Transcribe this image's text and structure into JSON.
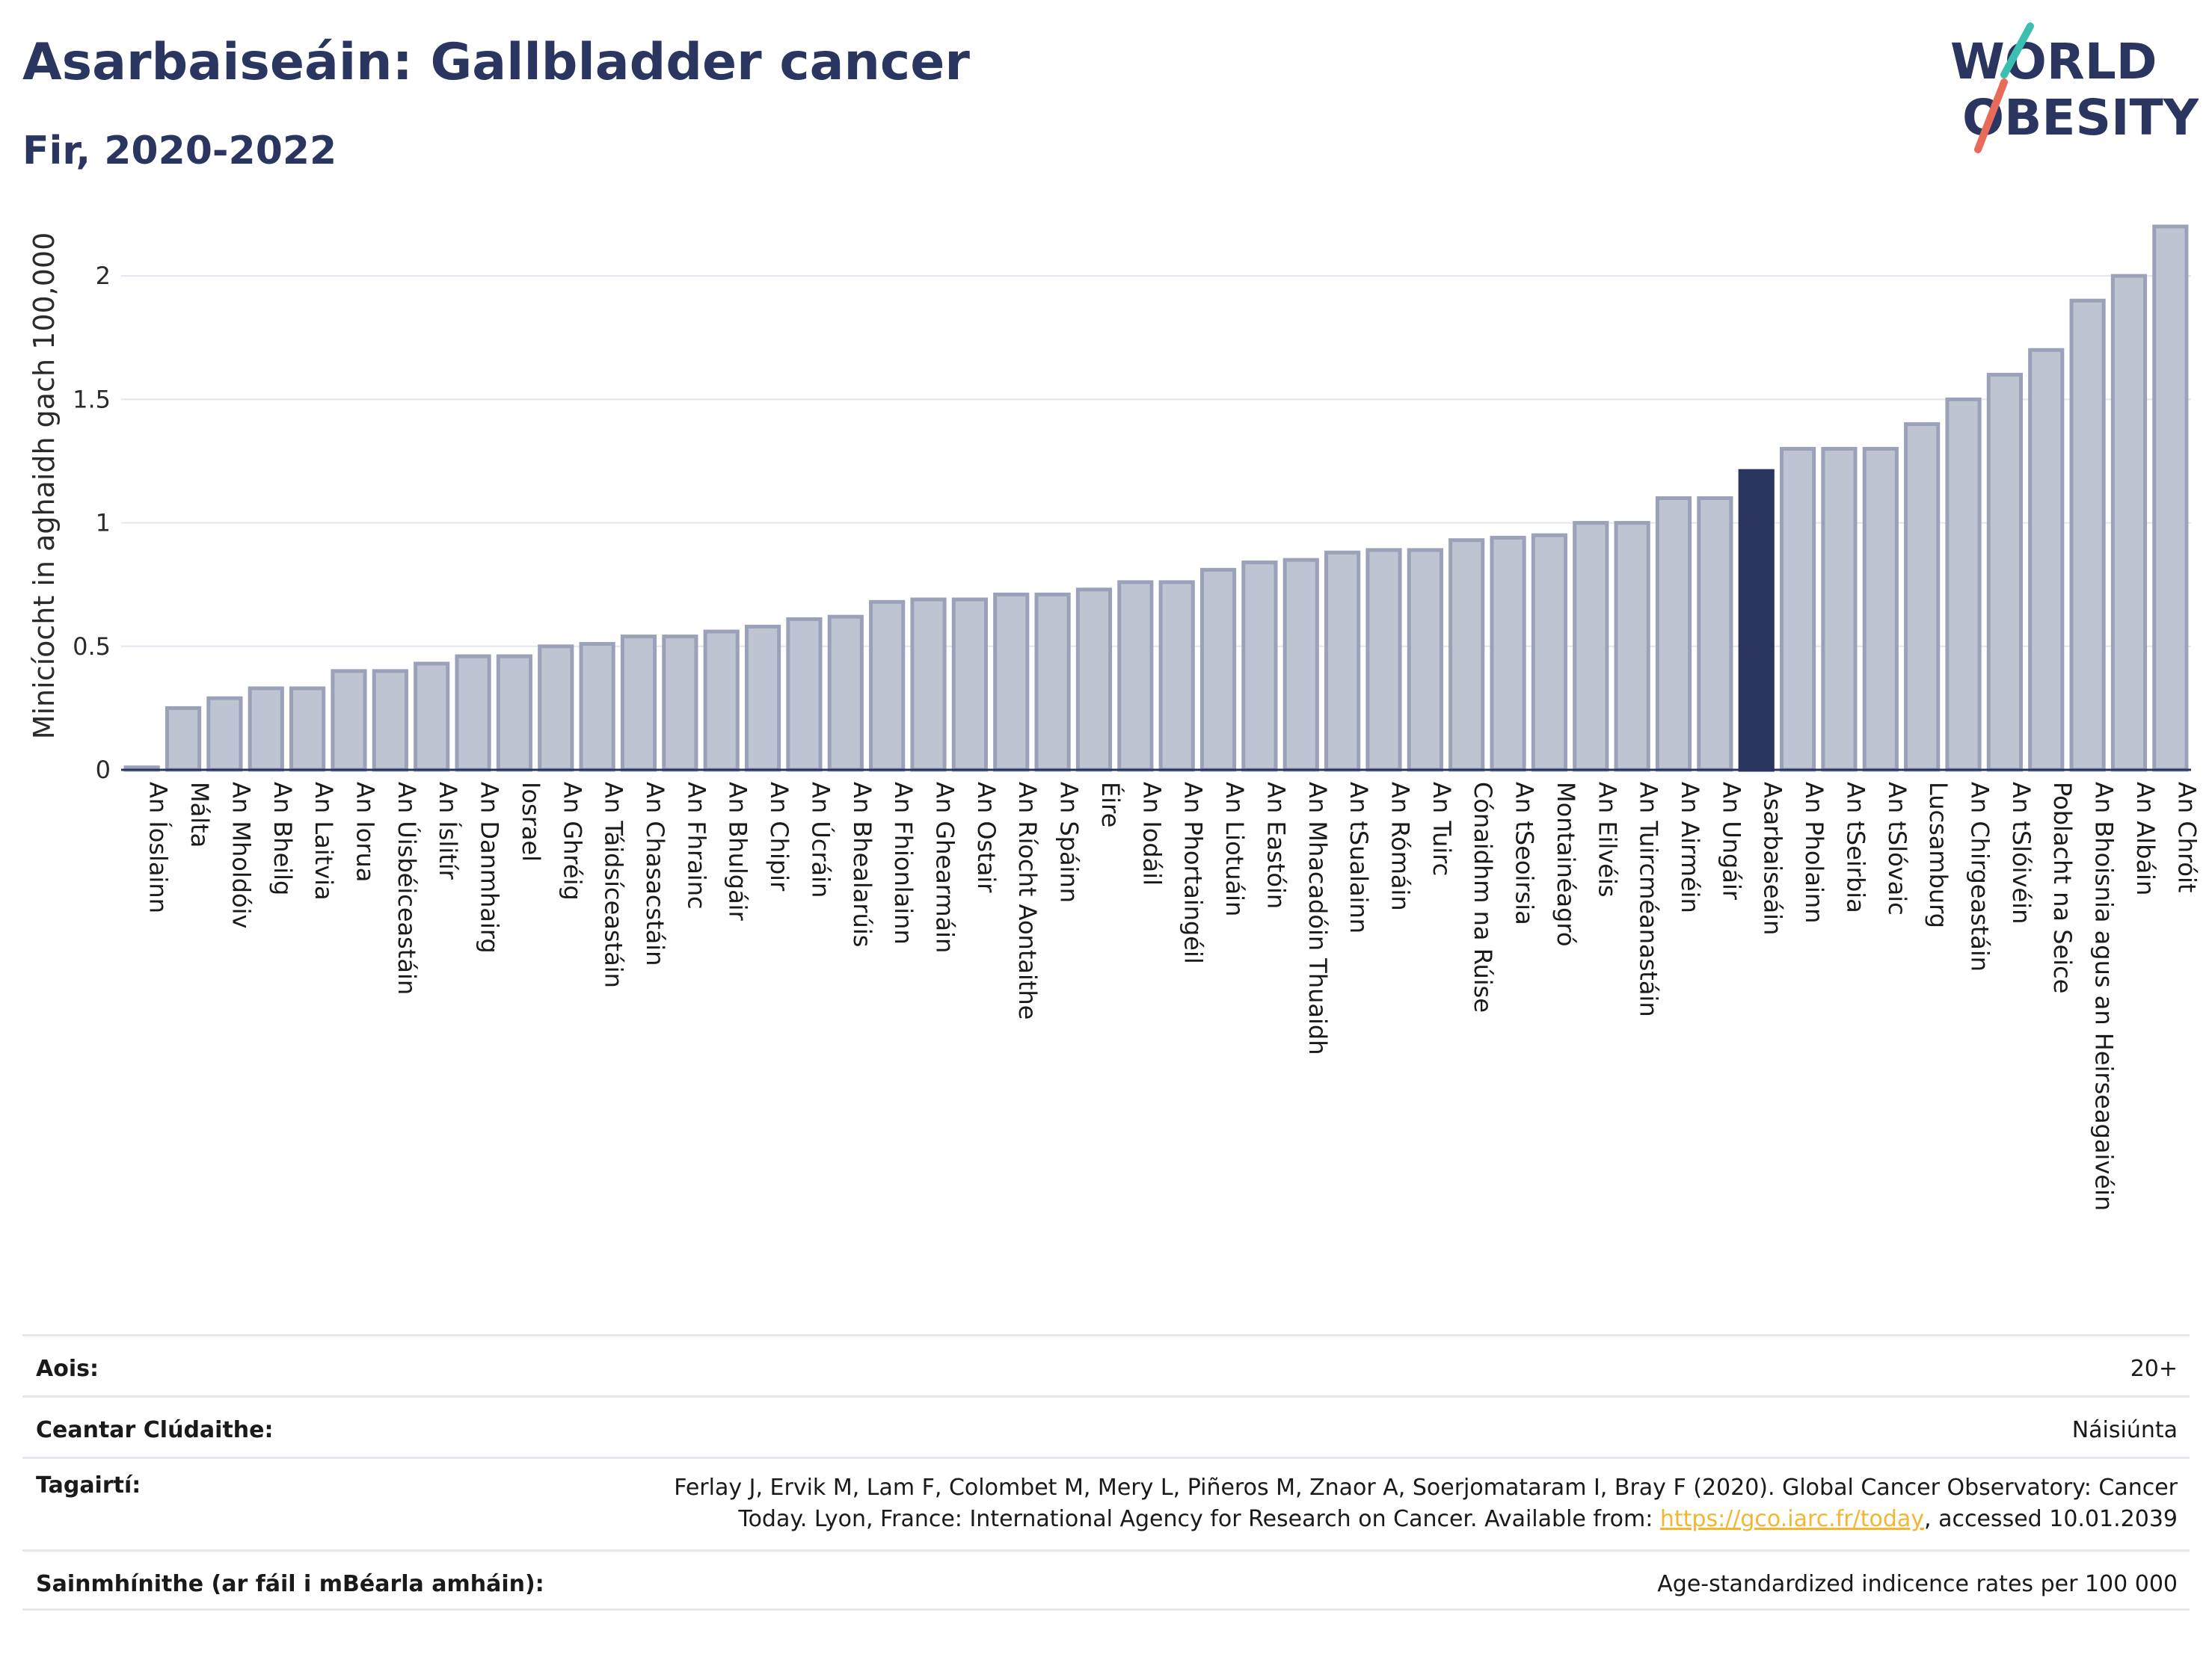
{
  "title": "Asarbaiseáin: Gallbladder cancer",
  "subtitle": "Fir, 2020-2022",
  "logo": {
    "line1": "WORLD",
    "line2": "OBESITY"
  },
  "chart_data": {
    "type": "bar",
    "ylabel": "Minicíocht in aghaidh gach 100,000",
    "ylim": [
      0,
      2.3
    ],
    "yticks": [
      0,
      0.5,
      1,
      1.5,
      2
    ],
    "highlight": "Asarbaiseáin",
    "bar_color": "#bfc4d3",
    "bar_edge_color": "#9aa1b9",
    "highlight_color": "#2a3560",
    "grid": true,
    "categories": [
      "An Íoslainn",
      "Málta",
      "An Mholdóiv",
      "An Bheilg",
      "An Laitvia",
      "An Iorua",
      "An Úisbéiceastáin",
      "An Íslitír",
      "An Danmhairg",
      "Iosrael",
      "An Ghréig",
      "An Táidsíceastáin",
      "An Chasacstáin",
      "An Fhrainc",
      "An Bhulgáir",
      "An Chipir",
      "An Úcráin",
      "An Bhealarúis",
      "An Fhionlainn",
      "An Ghearmáin",
      "An Ostair",
      "An Ríocht Aontaithe",
      "An Spáinn",
      "Éire",
      "An Iodáil",
      "An Phortaingéil",
      "An Liotuáin",
      "An Eastóin",
      "An Mhacadóin Thuaidh",
      "An tSualainn",
      "An Rómáin",
      "An Tuirc",
      "Cónaidhm na Rúise",
      "An tSeoirsia",
      "Montainéagró",
      "An Eilvéis",
      "An Tuircméanastáin",
      "An Airméin",
      "An Ungáir",
      "Asarbaiseáin",
      "An Pholainn",
      "An tSeirbia",
      "An tSlóvaic",
      "Lucsamburg",
      "An Chirgeastáin",
      "An tSlóivéin",
      "Poblacht na Seice",
      "An Bhoisnia agus an Heirseagaivéin",
      "An Albáin",
      "An Chróit"
    ],
    "values": [
      0.01,
      0.25,
      0.29,
      0.33,
      0.33,
      0.4,
      0.4,
      0.43,
      0.46,
      0.46,
      0.5,
      0.51,
      0.54,
      0.54,
      0.56,
      0.58,
      0.61,
      0.62,
      0.68,
      0.69,
      0.69,
      0.71,
      0.71,
      0.73,
      0.76,
      0.76,
      0.81,
      0.84,
      0.85,
      0.88,
      0.89,
      0.89,
      0.93,
      0.94,
      0.95,
      1.0,
      1.0,
      1.1,
      1.1,
      1.21,
      1.3,
      1.3,
      1.3,
      1.4,
      1.5,
      1.6,
      1.7,
      1.9,
      2.0,
      2.2
    ]
  },
  "info": [
    {
      "label": "Aois:",
      "value": "20+"
    },
    {
      "label": "Ceantar Clúdaithe:",
      "value": "Náisiúnta"
    },
    {
      "label": "Tagairtí:",
      "value_pre": "Ferlay J, Ervik M, Lam F, Colombet M, Mery L, Piñeros M, Znaor A, Soerjomataram I, Bray F (2020). Global Cancer Observatory: Cancer Today. Lyon, France: International Agency for Research on Cancer. Available from: ",
      "link": "https://gco.iarc.fr/today",
      "value_post": ", accessed 10.01.2039"
    },
    {
      "label": "Sainmhínithe (ar fáil i mBéarla amháin):",
      "value": "Age-standardized indicence rates per 100 000"
    }
  ]
}
